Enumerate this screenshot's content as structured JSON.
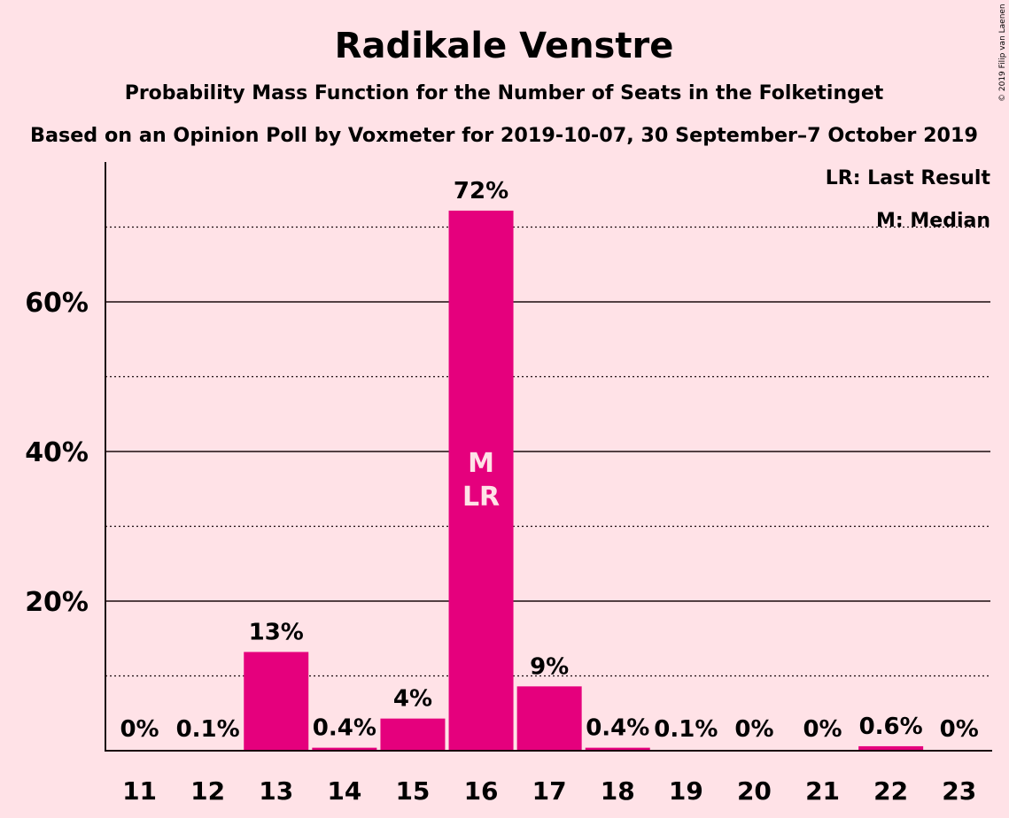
{
  "chart_data": {
    "type": "bar",
    "title": "Radikale Venstre",
    "subtitle": "Probability Mass Function for the Number of Seats in the Folketinget",
    "subtitle2": "Based on an Opinion Poll by Voxmeter for 2019-10-07, 30 September–7 October 2019",
    "categories": [
      "11",
      "12",
      "13",
      "14",
      "15",
      "16",
      "17",
      "18",
      "19",
      "20",
      "21",
      "22",
      "23"
    ],
    "values": [
      0,
      0.1,
      13.2,
      0.4,
      4.3,
      72.2,
      8.6,
      0.4,
      0.1,
      0,
      0,
      0.6,
      0
    ],
    "data_labels": [
      "0%",
      "0.1%",
      "13%",
      "0.4%",
      "4%",
      "72%",
      "9%",
      "0.4%",
      "0.1%",
      "0%",
      "0%",
      "0.6%",
      "0%"
    ],
    "ylim": [
      0,
      79
    ],
    "yticks": [
      20,
      40,
      60
    ],
    "ytick_labels": [
      "20%",
      "40%",
      "60%"
    ],
    "minor_gridlines": [
      10,
      30,
      50,
      70
    ],
    "bar_color": "#E5007D",
    "bar_annotation": {
      "category": "16",
      "lines": [
        "M",
        "LR"
      ]
    },
    "legend": [
      "LR: Last Result",
      "M: Median"
    ],
    "legend_placement": "top-right",
    "copyright": "© 2019 Filip van Laenen"
  }
}
